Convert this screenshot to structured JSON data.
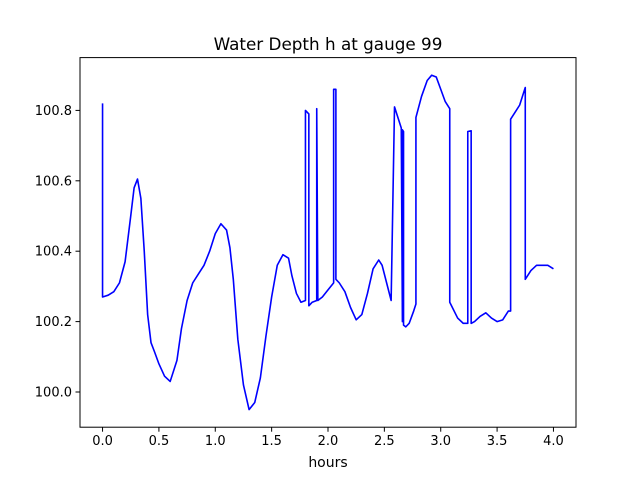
{
  "chart_data": {
    "type": "line",
    "title": "Water Depth h at gauge 99",
    "xlabel": "hours",
    "ylabel": "",
    "xlim": [
      -0.2,
      4.2
    ],
    "ylim": [
      99.9,
      100.95
    ],
    "xticks": [
      0.0,
      0.5,
      1.0,
      1.5,
      2.0,
      2.5,
      3.0,
      3.5,
      4.0
    ],
    "xtick_labels": [
      "0.0",
      "0.5",
      "1.0",
      "1.5",
      "2.0",
      "2.5",
      "3.0",
      "3.5",
      "4.0"
    ],
    "yticks": [
      100.0,
      100.2,
      100.4,
      100.6,
      100.8
    ],
    "ytick_labels": [
      "100.0",
      "100.2",
      "100.4",
      "100.6",
      "100.8"
    ],
    "grid": false,
    "legend": "none",
    "series": [
      {
        "color": "#0000ff",
        "x": [
          0.0,
          0.0,
          0.05,
          0.1,
          0.15,
          0.2,
          0.25,
          0.28,
          0.31,
          0.34,
          0.37,
          0.4,
          0.43,
          0.46,
          0.5,
          0.55,
          0.6,
          0.66,
          0.7,
          0.75,
          0.8,
          0.85,
          0.9,
          0.95,
          1.0,
          1.05,
          1.1,
          1.13,
          1.16,
          1.2,
          1.25,
          1.3,
          1.35,
          1.4,
          1.45,
          1.5,
          1.55,
          1.6,
          1.65,
          1.68,
          1.72,
          1.76,
          1.8,
          1.8,
          1.83,
          1.83,
          1.86,
          1.9,
          1.9,
          1.91,
          1.95,
          2.0,
          2.05,
          2.05,
          2.06,
          2.07,
          2.07,
          2.1,
          2.15,
          2.2,
          2.25,
          2.3,
          2.35,
          2.4,
          2.45,
          2.48,
          2.52,
          2.56,
          2.59,
          2.59,
          2.65,
          2.66,
          2.66,
          2.67,
          2.67,
          2.69,
          2.72,
          2.76,
          2.78,
          2.78,
          2.83,
          2.88,
          2.92,
          2.96,
          3.0,
          3.04,
          3.08,
          3.08,
          3.15,
          3.2,
          3.24,
          3.24,
          3.27,
          3.27,
          3.3,
          3.35,
          3.4,
          3.45,
          3.5,
          3.55,
          3.6,
          3.62,
          3.62,
          3.66,
          3.7,
          3.75,
          3.75,
          3.8,
          3.85,
          3.9,
          3.95,
          4.0
        ],
        "y": [
          100.82,
          100.27,
          100.275,
          100.285,
          100.31,
          100.37,
          100.5,
          100.58,
          100.605,
          100.55,
          100.4,
          100.22,
          100.14,
          100.115,
          100.08,
          100.045,
          100.03,
          100.09,
          100.18,
          100.26,
          100.31,
          100.335,
          100.36,
          100.4,
          100.45,
          100.478,
          100.46,
          100.41,
          100.32,
          100.15,
          100.02,
          99.95,
          99.97,
          100.04,
          100.16,
          100.27,
          100.36,
          100.39,
          100.38,
          100.33,
          100.28,
          100.255,
          100.26,
          100.8,
          100.79,
          100.245,
          100.255,
          100.26,
          100.805,
          100.26,
          100.27,
          100.29,
          100.31,
          100.86,
          100.86,
          100.86,
          100.32,
          100.31,
          100.285,
          100.24,
          100.205,
          100.22,
          100.28,
          100.35,
          100.375,
          100.36,
          100.31,
          100.26,
          100.81,
          100.81,
          100.75,
          100.2,
          100.745,
          100.74,
          100.19,
          100.185,
          100.195,
          100.23,
          100.25,
          100.78,
          100.84,
          100.885,
          100.9,
          100.895,
          100.86,
          100.825,
          100.805,
          100.255,
          100.21,
          100.195,
          100.195,
          100.74,
          100.742,
          100.195,
          100.2,
          100.215,
          100.225,
          100.21,
          100.2,
          100.205,
          100.23,
          100.23,
          100.775,
          100.795,
          100.815,
          100.865,
          100.32,
          100.345,
          100.36,
          100.36,
          100.36,
          100.35
        ]
      }
    ]
  }
}
